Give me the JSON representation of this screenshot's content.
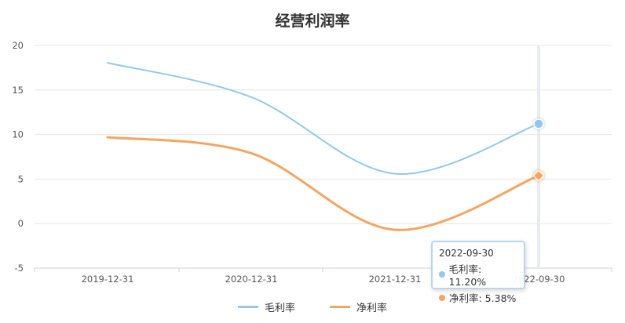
{
  "chart_data": {
    "type": "line",
    "title": "经营利润率",
    "categories": [
      "2019-12-31",
      "2020-12-31",
      "2021-12-31",
      "2022-09-30"
    ],
    "ylim": [
      -5,
      20
    ],
    "yticks": [
      20,
      15,
      10,
      5,
      0,
      -5
    ],
    "grid": true,
    "legend_position": "bottom-center",
    "series": [
      {
        "name": "毛利率",
        "color": "#93c8ea",
        "values": [
          18.05,
          14.2,
          5.6,
          11.2
        ]
      },
      {
        "name": "净利率",
        "color": "#f3a563",
        "values": [
          9.7,
          7.9,
          -0.7,
          5.38
        ]
      }
    ],
    "tooltip": {
      "date": "2022-09-30",
      "rows": [
        {
          "label": "毛利率: 11.20%",
          "color": "#93c8ea"
        },
        {
          "label": "净利率: 5.38%",
          "color": "#f3a563"
        }
      ]
    }
  }
}
